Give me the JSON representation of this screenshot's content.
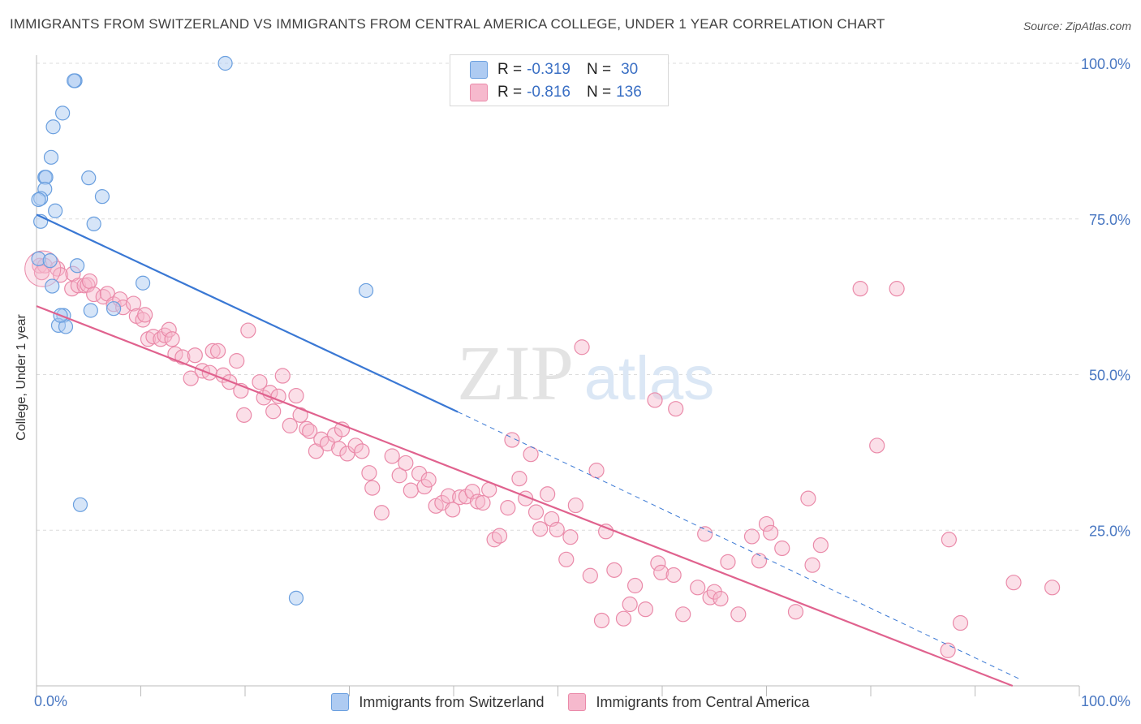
{
  "title": "IMMIGRANTS FROM SWITZERLAND VS IMMIGRANTS FROM CENTRAL AMERICA COLLEGE, UNDER 1 YEAR CORRELATION CHART",
  "source": "Source: ZipAtlas.com",
  "watermark": {
    "zip": "ZIP",
    "atlas": "atlas"
  },
  "colors": {
    "blue_fill": "#aecbf2",
    "blue_stroke": "#6a9fdf",
    "blue_line": "#3a78d4",
    "pink_fill": "#f6b9cd",
    "pink_stroke": "#ea8aa9",
    "pink_line": "#e0628e",
    "tick_text": "#4a78c2"
  },
  "legend": {
    "rows": [
      {
        "r_label": "R =",
        "r_value": "-0.319",
        "n_label": "N =",
        "n_value": "30"
      },
      {
        "r_label": "R =",
        "r_value": "-0.816",
        "n_label": "N =",
        "n_value": "136"
      }
    ]
  },
  "chart_data": {
    "type": "scatter",
    "title": "IMMIGRANTS FROM SWITZERLAND VS IMMIGRANTS FROM CENTRAL AMERICA COLLEGE, UNDER 1 YEAR CORRELATION CHART",
    "xlabel": "",
    "ylabel": "College, Under 1 year",
    "xlim": [
      0,
      100
    ],
    "ylim": [
      0,
      100
    ],
    "x_tick_labels": [
      "0.0%",
      "100.0%"
    ],
    "y_tick_labels": [
      "100.0%",
      "75.0%",
      "50.0%",
      "25.0%"
    ],
    "y_ticks": [
      100,
      75,
      50,
      25
    ],
    "grid": true,
    "legend_position": "bottom",
    "series": [
      {
        "name": "Immigrants from Switzerland",
        "color": "#6a9fdf",
        "trend": {
          "x": [
            0,
            40.4
          ],
          "y": [
            75.7,
            44.0
          ],
          "dashed_to": [
            94.4,
            1.0
          ]
        },
        "points": [
          [
            18.1,
            100.0
          ],
          [
            3.7,
            97.2
          ],
          [
            3.6,
            97.2
          ],
          [
            2.5,
            92.0
          ],
          [
            1.6,
            89.8
          ],
          [
            1.4,
            84.9
          ],
          [
            0.8,
            81.7
          ],
          [
            0.9,
            81.7
          ],
          [
            5.0,
            81.6
          ],
          [
            0.8,
            79.8
          ],
          [
            0.4,
            78.3
          ],
          [
            0.2,
            78.1
          ],
          [
            6.3,
            78.6
          ],
          [
            1.8,
            76.3
          ],
          [
            0.4,
            74.6
          ],
          [
            5.5,
            74.2
          ],
          [
            0.2,
            68.6
          ],
          [
            1.3,
            68.3
          ],
          [
            3.9,
            67.5
          ],
          [
            1.5,
            64.2
          ],
          [
            10.2,
            64.7
          ],
          [
            31.6,
            63.5
          ],
          [
            7.4,
            60.6
          ],
          [
            5.2,
            60.3
          ],
          [
            2.6,
            59.5
          ],
          [
            2.1,
            57.9
          ],
          [
            2.8,
            57.7
          ],
          [
            2.3,
            59.5
          ],
          [
            4.2,
            29.1
          ],
          [
            24.9,
            14.1
          ]
        ]
      },
      {
        "name": "Immigrants from Central America",
        "color": "#ea8aa9",
        "trend": {
          "x": [
            0,
            93.6
          ],
          "y": [
            61.0,
            0.0
          ]
        },
        "points": [
          [
            0.3,
            67.5
          ],
          [
            0.8,
            67.5
          ],
          [
            2.0,
            67.0
          ],
          [
            2.3,
            66.0
          ],
          [
            3.5,
            66.2
          ],
          [
            3.4,
            63.8
          ],
          [
            4.0,
            64.3
          ],
          [
            4.6,
            64.3
          ],
          [
            4.9,
            64.4
          ],
          [
            5.1,
            65.0
          ],
          [
            5.5,
            62.9
          ],
          [
            6.4,
            62.5
          ],
          [
            6.8,
            63.0
          ],
          [
            7.4,
            61.3
          ],
          [
            8.0,
            62.1
          ],
          [
            8.3,
            60.8
          ],
          [
            9.3,
            61.4
          ],
          [
            9.6,
            59.4
          ],
          [
            10.2,
            58.8
          ],
          [
            10.4,
            59.6
          ],
          [
            10.7,
            55.7
          ],
          [
            11.2,
            56.1
          ],
          [
            11.9,
            55.7
          ],
          [
            12.3,
            56.3
          ],
          [
            12.7,
            57.2
          ],
          [
            13.0,
            55.7
          ],
          [
            13.3,
            53.3
          ],
          [
            14.0,
            52.8
          ],
          [
            14.8,
            49.4
          ],
          [
            15.2,
            53.1
          ],
          [
            15.9,
            50.6
          ],
          [
            16.6,
            50.3
          ],
          [
            16.9,
            53.8
          ],
          [
            17.4,
            53.8
          ],
          [
            17.9,
            49.9
          ],
          [
            18.5,
            48.8
          ],
          [
            19.2,
            52.2
          ],
          [
            19.6,
            47.4
          ],
          [
            19.9,
            43.5
          ],
          [
            20.3,
            57.1
          ],
          [
            21.4,
            48.8
          ],
          [
            21.8,
            46.3
          ],
          [
            22.4,
            47.1
          ],
          [
            22.7,
            44.1
          ],
          [
            23.2,
            46.5
          ],
          [
            23.6,
            49.8
          ],
          [
            24.3,
            41.8
          ],
          [
            24.9,
            46.6
          ],
          [
            25.3,
            43.5
          ],
          [
            25.9,
            41.3
          ],
          [
            26.2,
            40.9
          ],
          [
            26.8,
            37.7
          ],
          [
            27.3,
            39.6
          ],
          [
            27.9,
            38.9
          ],
          [
            28.6,
            40.3
          ],
          [
            29.0,
            38.1
          ],
          [
            29.3,
            41.2
          ],
          [
            29.8,
            37.3
          ],
          [
            30.6,
            38.6
          ],
          [
            31.2,
            37.7
          ],
          [
            31.9,
            34.2
          ],
          [
            32.2,
            31.8
          ],
          [
            33.1,
            27.8
          ],
          [
            34.1,
            36.9
          ],
          [
            34.8,
            33.8
          ],
          [
            35.4,
            35.8
          ],
          [
            35.9,
            31.4
          ],
          [
            36.7,
            34.1
          ],
          [
            37.2,
            32.0
          ],
          [
            37.6,
            33.1
          ],
          [
            38.3,
            28.9
          ],
          [
            38.9,
            29.4
          ],
          [
            39.5,
            30.5
          ],
          [
            39.9,
            28.3
          ],
          [
            40.6,
            30.3
          ],
          [
            41.2,
            30.4
          ],
          [
            41.8,
            31.2
          ],
          [
            42.3,
            29.6
          ],
          [
            42.8,
            29.4
          ],
          [
            43.4,
            31.5
          ],
          [
            43.9,
            23.5
          ],
          [
            44.4,
            24.1
          ],
          [
            45.2,
            28.6
          ],
          [
            45.6,
            39.5
          ],
          [
            46.3,
            33.3
          ],
          [
            46.9,
            30.1
          ],
          [
            47.4,
            37.2
          ],
          [
            47.9,
            27.9
          ],
          [
            48.3,
            25.2
          ],
          [
            49.0,
            30.8
          ],
          [
            49.4,
            26.8
          ],
          [
            49.9,
            25.1
          ],
          [
            50.8,
            20.3
          ],
          [
            51.2,
            23.9
          ],
          [
            51.7,
            29.0
          ],
          [
            52.3,
            54.4
          ],
          [
            53.1,
            17.7
          ],
          [
            53.7,
            34.6
          ],
          [
            54.2,
            10.5
          ],
          [
            54.6,
            24.8
          ],
          [
            55.4,
            18.6
          ],
          [
            56.3,
            10.8
          ],
          [
            56.9,
            13.1
          ],
          [
            57.4,
            16.1
          ],
          [
            58.4,
            12.3
          ],
          [
            59.3,
            45.9
          ],
          [
            59.6,
            19.7
          ],
          [
            59.9,
            18.2
          ],
          [
            61.1,
            17.8
          ],
          [
            61.3,
            44.5
          ],
          [
            62.0,
            11.5
          ],
          [
            63.4,
            15.8
          ],
          [
            64.1,
            24.4
          ],
          [
            64.6,
            14.2
          ],
          [
            65.0,
            15.1
          ],
          [
            65.6,
            14.0
          ],
          [
            66.3,
            19.9
          ],
          [
            67.3,
            11.5
          ],
          [
            68.6,
            24.0
          ],
          [
            69.3,
            20.1
          ],
          [
            70.0,
            26.0
          ],
          [
            70.4,
            24.6
          ],
          [
            71.5,
            22.1
          ],
          [
            72.8,
            11.9
          ],
          [
            74.0,
            30.1
          ],
          [
            74.4,
            19.4
          ],
          [
            75.2,
            22.6
          ],
          [
            79.0,
            63.8
          ],
          [
            80.6,
            38.6
          ],
          [
            82.5,
            63.8
          ],
          [
            87.5,
            23.5
          ],
          [
            87.4,
            5.7
          ],
          [
            88.6,
            10.1
          ],
          [
            93.7,
            16.6
          ],
          [
            97.4,
            15.8
          ],
          [
            0.5,
            66.4
          ]
        ]
      }
    ]
  }
}
